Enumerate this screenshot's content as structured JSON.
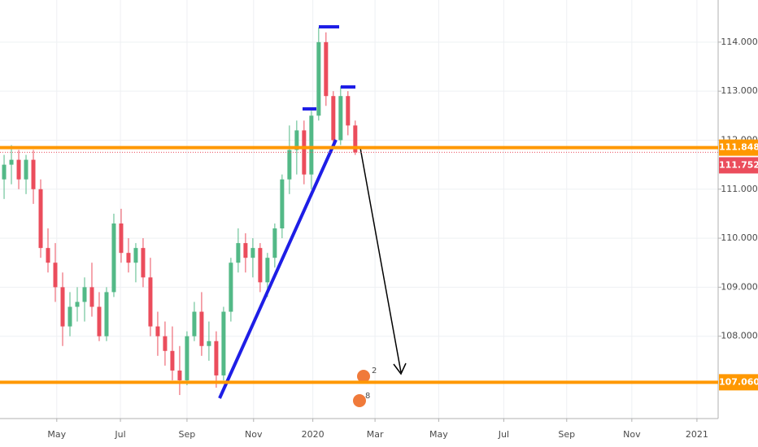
{
  "chart_data": {
    "type": "candlestick",
    "categories": [
      null,
      null,
      null,
      null,
      null,
      null,
      null,
      null,
      null,
      null,
      null,
      null,
      null,
      null,
      null,
      null,
      null,
      null,
      null,
      null,
      null,
      null,
      null,
      null,
      null,
      null,
      null,
      null,
      null,
      null,
      null,
      null,
      null,
      null,
      null,
      null,
      null,
      null,
      null,
      null,
      null,
      null,
      null,
      null,
      null,
      null,
      null,
      null,
      null
    ],
    "ohlc": [
      [
        111.2,
        111.7,
        110.8,
        111.5
      ],
      [
        111.5,
        111.9,
        111.1,
        111.6
      ],
      [
        111.6,
        111.8,
        111.0,
        111.2
      ],
      [
        111.2,
        111.7,
        110.9,
        111.6
      ],
      [
        111.6,
        111.8,
        110.7,
        111.0
      ],
      [
        111.0,
        111.2,
        109.6,
        109.8
      ],
      [
        109.8,
        110.2,
        109.3,
        109.5
      ],
      [
        109.5,
        109.9,
        108.7,
        109.0
      ],
      [
        109.0,
        109.3,
        107.8,
        108.2
      ],
      [
        108.2,
        108.9,
        108.0,
        108.6
      ],
      [
        108.6,
        109.0,
        108.3,
        108.7
      ],
      [
        108.7,
        109.2,
        108.3,
        109.0
      ],
      [
        109.0,
        109.5,
        108.4,
        108.6
      ],
      [
        108.6,
        108.9,
        107.9,
        108.0
      ],
      [
        108.0,
        109.0,
        107.9,
        108.9
      ],
      [
        108.9,
        110.5,
        108.8,
        110.3
      ],
      [
        110.3,
        110.6,
        109.5,
        109.7
      ],
      [
        109.7,
        110.0,
        109.3,
        109.5
      ],
      [
        109.5,
        109.9,
        109.1,
        109.8
      ],
      [
        109.8,
        110.0,
        109.0,
        109.2
      ],
      [
        109.2,
        109.6,
        108.0,
        108.2
      ],
      [
        108.2,
        108.5,
        107.6,
        108.0
      ],
      [
        108.0,
        108.3,
        107.4,
        107.7
      ],
      [
        107.7,
        108.2,
        107.1,
        107.3
      ],
      [
        107.3,
        107.8,
        106.8,
        107.1
      ],
      [
        107.1,
        108.1,
        107.0,
        108.0
      ],
      [
        108.0,
        108.7,
        107.9,
        108.5
      ],
      [
        108.5,
        108.9,
        107.6,
        107.8
      ],
      [
        107.8,
        108.3,
        107.5,
        107.9
      ],
      [
        107.9,
        108.1,
        106.95,
        107.2
      ],
      [
        107.2,
        108.6,
        107.1,
        108.5
      ],
      [
        108.5,
        109.6,
        108.3,
        109.5
      ],
      [
        109.5,
        110.2,
        109.3,
        109.9
      ],
      [
        109.9,
        110.1,
        109.3,
        109.6
      ],
      [
        109.6,
        110.0,
        109.2,
        109.8
      ],
      [
        109.8,
        109.9,
        108.9,
        109.1
      ],
      [
        109.1,
        109.7,
        108.8,
        109.6
      ],
      [
        109.6,
        110.3,
        109.4,
        110.2
      ],
      [
        110.2,
        111.3,
        110.0,
        111.2
      ],
      [
        111.2,
        112.3,
        110.9,
        111.8
      ],
      [
        111.8,
        112.4,
        111.3,
        112.2
      ],
      [
        112.2,
        112.4,
        111.1,
        111.3
      ],
      [
        111.3,
        112.6,
        111.0,
        112.5
      ],
      [
        112.5,
        114.3,
        112.4,
        114.0
      ],
      [
        114.0,
        114.2,
        112.7,
        112.9
      ],
      [
        112.9,
        113.0,
        111.9,
        112.0
      ],
      [
        112.0,
        113.1,
        111.9,
        112.9
      ],
      [
        112.9,
        113.0,
        112.1,
        112.3
      ],
      [
        112.3,
        112.4,
        111.7,
        111.75
      ]
    ],
    "up_color": "#53b987",
    "down_color": "#eb4d5c",
    "xlim": [
      -0.56,
      97.6
    ],
    "xticks": [
      {
        "value": 7.2,
        "label": "May"
      },
      {
        "value": 15.9,
        "label": "Jul"
      },
      {
        "value": 25,
        "label": "Sep"
      },
      {
        "value": 34.1,
        "label": "Nov"
      },
      {
        "value": 42.2,
        "label": "2020"
      },
      {
        "value": 50.7,
        "label": "Mar"
      },
      {
        "value": 59.4,
        "label": "May"
      },
      {
        "value": 68.3,
        "label": "Jul"
      },
      {
        "value": 76.9,
        "label": "Sep"
      },
      {
        "value": 85.8,
        "label": "Nov"
      },
      {
        "value": 94.7,
        "label": "2021"
      }
    ],
    "ylim": [
      106.32,
      114.86
    ],
    "yticks": [
      {
        "value": 108,
        "label": "108.000"
      },
      {
        "value": 109,
        "label": "109.000"
      },
      {
        "value": 110,
        "label": "110.000"
      },
      {
        "value": 111,
        "label": "111.000"
      },
      {
        "value": 112,
        "label": "112.000"
      },
      {
        "value": 113,
        "label": "113.000"
      },
      {
        "value": 114,
        "label": "114.000"
      }
    ],
    "grid": true,
    "levels": [
      {
        "value": 111.848,
        "label": "111.848",
        "color": "#ff9800"
      },
      {
        "value": 107.06,
        "label": "107.060",
        "color": "#ff9800"
      }
    ],
    "last_price": {
      "value": 111.752,
      "label": "111.752",
      "color": "#eb4d5c"
    },
    "event_badges": [
      "2",
      "8"
    ]
  }
}
